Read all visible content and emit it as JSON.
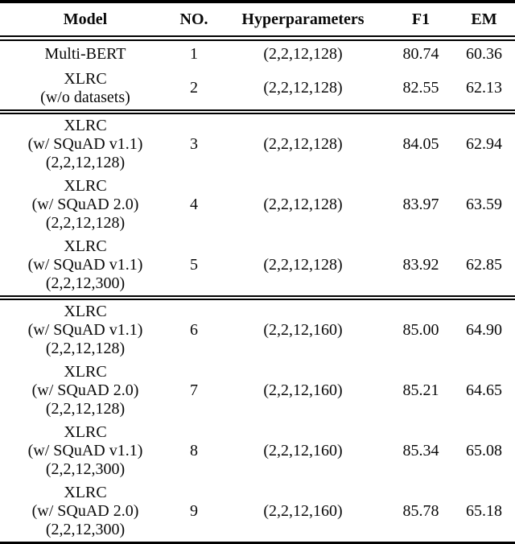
{
  "table": {
    "columns": [
      "Model",
      "NO.",
      "Hyperparameters",
      "F1",
      "EM"
    ],
    "groups": [
      {
        "rows": [
          {
            "model": "Multi-BERT",
            "no": "1",
            "hyper": "(2,2,12,128)",
            "f1": "80.74",
            "em": "60.36"
          },
          {
            "model": "XLRC\n(w/o datasets)",
            "no": "2",
            "hyper": "(2,2,12,128)",
            "f1": "82.55",
            "em": "62.13"
          }
        ]
      },
      {
        "rows": [
          {
            "model": "XLRC\n(w/ SQuAD v1.1)\n(2,2,12,128)",
            "no": "3",
            "hyper": "(2,2,12,128)",
            "f1": "84.05",
            "em": "62.94"
          },
          {
            "model": "XLRC\n(w/ SQuAD 2.0)\n(2,2,12,128)",
            "no": "4",
            "hyper": "(2,2,12,128)",
            "f1": "83.97",
            "em": "63.59"
          },
          {
            "model": "XLRC\n(w/ SQuAD v1.1)\n(2,2,12,300)",
            "no": "5",
            "hyper": "(2,2,12,128)",
            "f1": "83.92",
            "em": "62.85"
          }
        ]
      },
      {
        "rows": [
          {
            "model": "XLRC\n(w/ SQuAD v1.1)\n(2,2,12,128)",
            "no": "6",
            "hyper": "(2,2,12,160)",
            "f1": "85.00",
            "em": "64.90"
          },
          {
            "model": "XLRC\n(w/ SQuAD 2.0)\n(2,2,12,128)",
            "no": "7",
            "hyper": "(2,2,12,160)",
            "f1": "85.21",
            "em": "64.65"
          },
          {
            "model": "XLRC\n(w/ SQuAD v1.1)\n(2,2,12,300)",
            "no": "8",
            "hyper": "(2,2,12,160)",
            "f1": "85.34",
            "em": "65.08"
          },
          {
            "model": "XLRC\n(w/ SQuAD 2.0)\n(2,2,12,300)",
            "no": "9",
            "hyper": "(2,2,12,160)",
            "f1": "85.78",
            "em": "65.18"
          }
        ]
      }
    ]
  }
}
